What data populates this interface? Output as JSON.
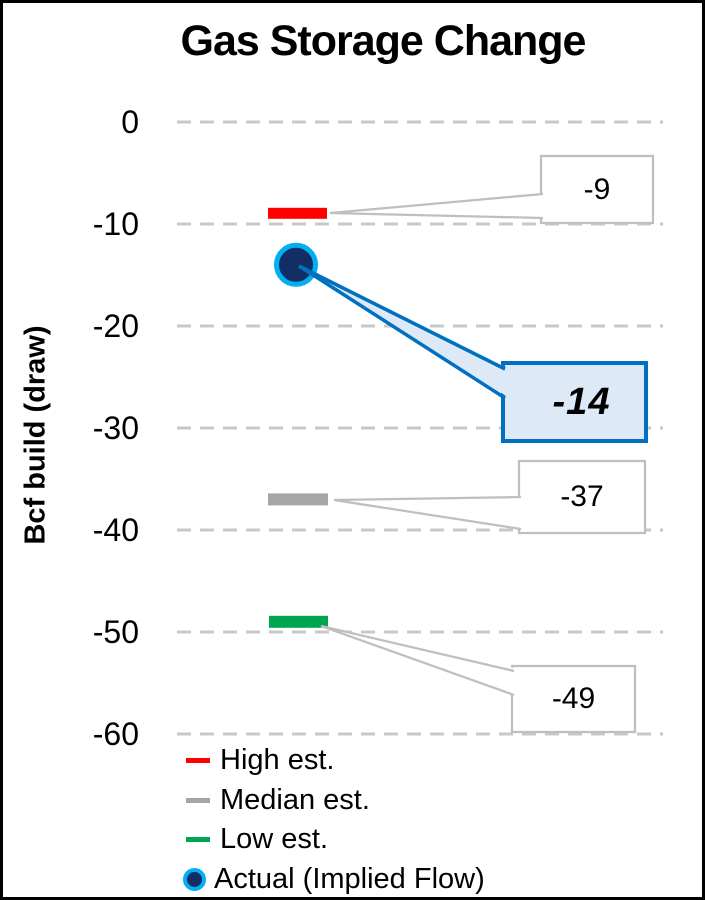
{
  "chart_data": {
    "type": "scatter",
    "title": "Gas Storage Change",
    "ylabel": "Bcf build (draw)",
    "ylim": [
      -60,
      0
    ],
    "yticks": [
      0,
      -10,
      -20,
      -30,
      -40,
      -50,
      -60
    ],
    "grid": "horizontal-dashed",
    "legend_position": "bottom-left",
    "series": [
      {
        "name": "High est.",
        "value": -9,
        "marker": "dash",
        "color": "#FF0000"
      },
      {
        "name": "Median est.",
        "value": -37,
        "marker": "dash",
        "color": "#A6A6A6"
      },
      {
        "name": "Low est.",
        "value": -49,
        "marker": "dash",
        "color": "#00A551"
      },
      {
        "name": "Actual (Implied Flow)",
        "value": -14,
        "marker": "circle",
        "color": "#132E64",
        "ring_color": "#00B0F0"
      }
    ],
    "annotations": [
      {
        "label": "-9",
        "value": -9,
        "style": "gray-callout"
      },
      {
        "label": "-14",
        "value": -14,
        "style": "blue-callout"
      },
      {
        "label": "-37",
        "value": -37,
        "style": "gray-callout"
      },
      {
        "label": "-49",
        "value": -49,
        "style": "gray-callout"
      }
    ]
  },
  "colors": {
    "gridline": "#C8C8C8",
    "callout_gray_border": "#BFBFBF",
    "callout_gray_fill": "#FFFFFF",
    "callout_blue_border": "#0070C0",
    "callout_blue_fill": "#DDE9F7",
    "text": "#000000"
  }
}
